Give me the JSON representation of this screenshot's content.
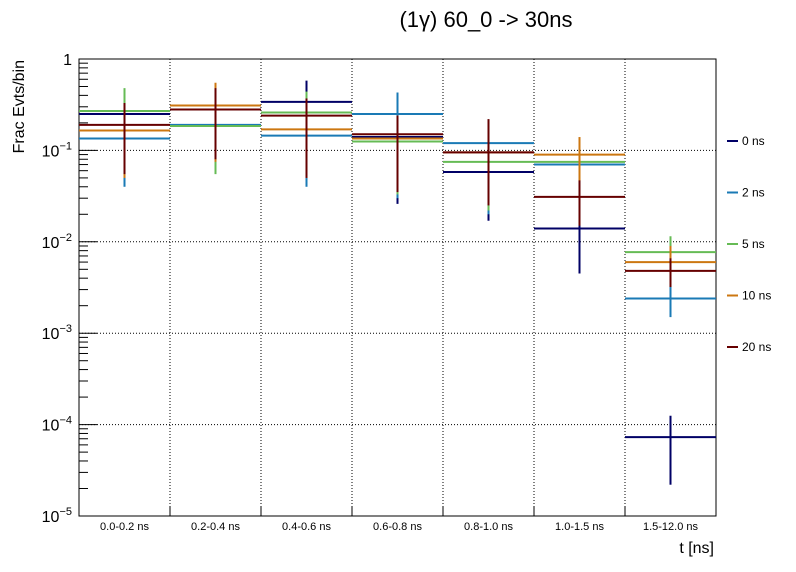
{
  "chart_data": {
    "type": "scatter",
    "title": "(1γ) 60_0 -> 30ns",
    "xlabel": "t [ns]",
    "ylabel": "Frac Evts/bin",
    "y_scale": "log",
    "ylim": [
      1e-05,
      1
    ],
    "y_ticks": [
      {
        "base": "1",
        "exp": ""
      },
      {
        "base": "10",
        "exp": "−1"
      },
      {
        "base": "10",
        "exp": "−2"
      },
      {
        "base": "10",
        "exp": "−3"
      },
      {
        "base": "10",
        "exp": "−4"
      },
      {
        "base": "10",
        "exp": "−5"
      }
    ],
    "grid": true,
    "legend_position": "right",
    "categories": [
      "0.0-0.2 ns",
      "0.2-0.4 ns",
      "0.4-0.6 ns",
      "0.6-0.8 ns",
      "0.8-1.0 ns",
      "1.0-1.5 ns",
      "1.5-12.0 ns"
    ],
    "series": [
      {
        "name": "0 ns",
        "color": "#000066",
        "values": [
          0.25,
          0.28,
          0.34,
          0.14,
          0.058,
          0.014,
          7.3e-05
        ],
        "err_low": [
          0.055,
          0.07,
          0.042,
          0.026,
          0.017,
          0.0045,
          2.2e-05
        ],
        "err_high": [
          0.33,
          0.45,
          0.58,
          0.25,
          0.2,
          0.03,
          0.000125
        ]
      },
      {
        "name": "2 ns",
        "color": "#1a7ab5",
        "values": [
          0.135,
          0.19,
          0.145,
          0.25,
          0.12,
          0.07,
          0.0024
        ],
        "err_low": [
          0.04,
          0.075,
          0.04,
          0.03,
          0.02,
          0.028,
          0.0015
        ],
        "err_high": [
          0.32,
          0.42,
          0.42,
          0.43,
          0.21,
          0.12,
          0.0035
        ]
      },
      {
        "name": "5 ns",
        "color": "#66bb55",
        "values": [
          0.27,
          0.185,
          0.26,
          0.125,
          0.075,
          0.075,
          0.0077
        ],
        "err_low": [
          0.06,
          0.055,
          0.09,
          0.033,
          0.022,
          0.05,
          0.0045
        ],
        "err_high": [
          0.48,
          0.43,
          0.44,
          0.22,
          0.16,
          0.11,
          0.0115
        ]
      },
      {
        "name": "10 ns",
        "color": "#cc7711",
        "values": [
          0.165,
          0.31,
          0.17,
          0.135,
          0.095,
          0.09,
          0.006
        ],
        "err_low": [
          0.05,
          0.075,
          0.05,
          0.035,
          0.03,
          0.045,
          0.0033
        ],
        "err_high": [
          0.3,
          0.55,
          0.35,
          0.24,
          0.19,
          0.14,
          0.009
        ]
      },
      {
        "name": "20 ns",
        "color": "#660000",
        "values": [
          0.19,
          0.28,
          0.24,
          0.15,
          0.095,
          0.031,
          0.0048
        ],
        "err_low": [
          0.055,
          0.08,
          0.05,
          0.035,
          0.025,
          0.015,
          0.0032
        ],
        "err_high": [
          0.33,
          0.48,
          0.37,
          0.24,
          0.22,
          0.047,
          0.0066
        ]
      }
    ]
  }
}
